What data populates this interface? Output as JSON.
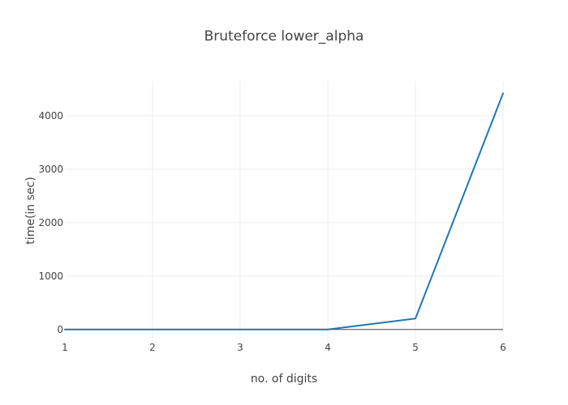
{
  "chart_data": {
    "type": "line",
    "title": "Bruteforce lower_alpha",
    "xlabel": "no. of digits",
    "ylabel": "time(in sec)",
    "x": [
      1,
      2,
      3,
      4,
      5,
      6
    ],
    "series": [
      {
        "values": [
          0.0,
          0.0,
          0.0,
          1.5,
          205,
          4420
        ]
      }
    ],
    "xlim": [
      1,
      6
    ],
    "ylim": [
      -200,
      4650
    ],
    "x_ticks": [
      "1",
      "2",
      "3",
      "4",
      "5",
      "6"
    ],
    "y_ticks": [
      "0",
      "1000",
      "2000",
      "3000",
      "4000"
    ],
    "grid": true,
    "legend": "none",
    "colors": {
      "line": "#1f77b4",
      "grid": "#eeeeee",
      "zero_line": "#444444",
      "text": "#444444"
    }
  }
}
